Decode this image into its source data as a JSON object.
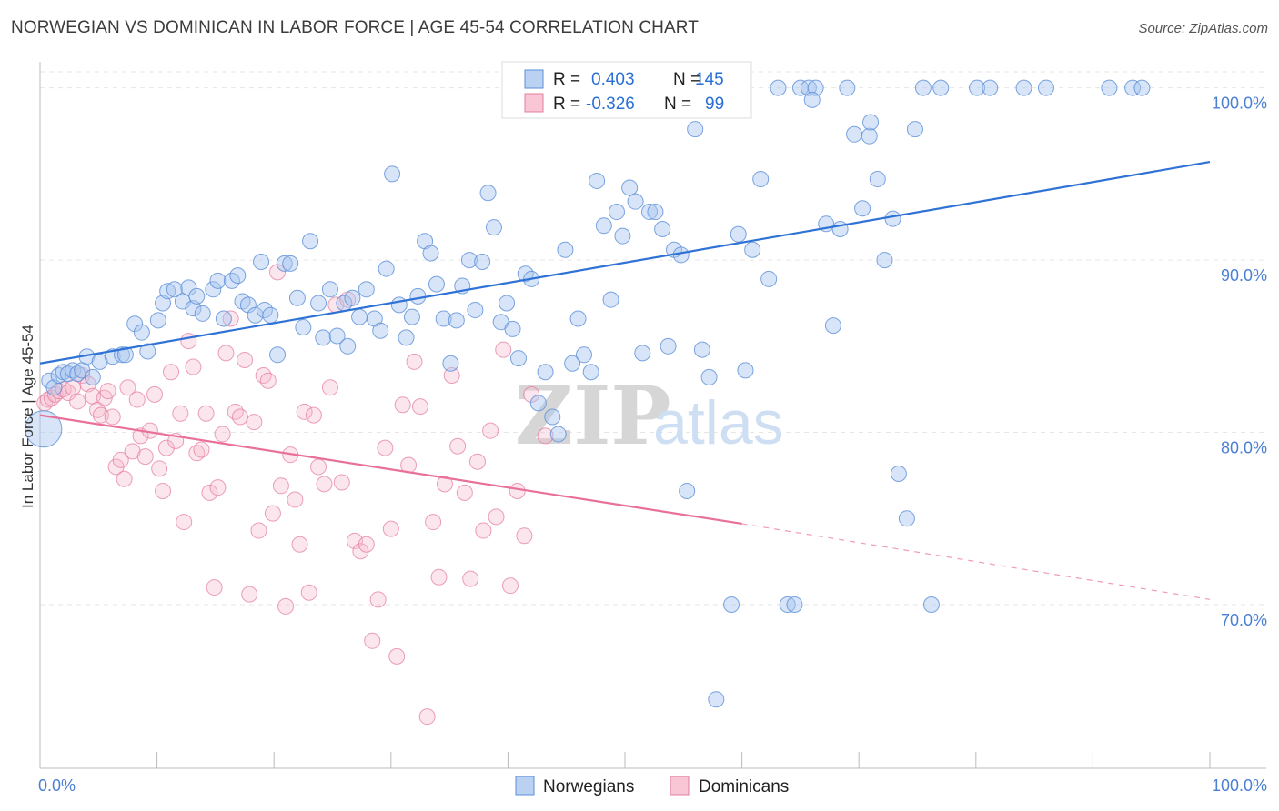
{
  "title": "NORWEGIAN VS DOMINICAN IN LABOR FORCE | AGE 45-54 CORRELATION CHART",
  "source": "Source: ZipAtlas.com",
  "watermark": {
    "zip": "ZIP",
    "atlas": "atlas"
  },
  "colors": {
    "norwegians_fill": "#a9c6ef",
    "norwegians_stroke": "#5b8fd8",
    "norwegians_line": "#2f72d6",
    "dominicans_fill": "#f6b8cb",
    "dominicans_stroke": "#e47fa0",
    "dominicans_line": "#e8709a",
    "tick_text": "#4a7fd4",
    "grid": "#e6e6e6"
  },
  "legend_box": {
    "r_label": "R =",
    "n_label": "N =",
    "rows": [
      {
        "series": "Norwegians",
        "r": "0.403",
        "n": "145"
      },
      {
        "series": "Dominicans",
        "r": "-0.326",
        "n": "99"
      }
    ]
  },
  "bottom_legend": [
    "Norwegians",
    "Dominicans"
  ],
  "chart_data": {
    "type": "scatter",
    "title": "NORWEGIAN VS DOMINICAN IN LABOR FORCE | AGE 45-54 CORRELATION CHART",
    "xlabel": "",
    "ylabel": "In Labor Force | Age 45-54",
    "xlim": [
      0,
      100
    ],
    "ylim": [
      60.5,
      101.3
    ],
    "x_tick_labels": [
      "0.0%",
      "100.0%"
    ],
    "y_ticks": [
      70,
      80,
      90,
      100
    ],
    "y_tick_labels": [
      "70.0%",
      "80.0%",
      "90.0%",
      "100.0%"
    ],
    "grid": true,
    "legend_position": "top-center",
    "series": [
      {
        "name": "Norwegians",
        "r": 0.403,
        "n": 145,
        "trend": {
          "x0": 0,
          "y0": 84.0,
          "x1": 100,
          "y1": 95.7
        },
        "points": [
          [
            0.3,
            80.2
          ],
          [
            0.8,
            83.0
          ],
          [
            1.2,
            82.6
          ],
          [
            1.6,
            83.3
          ],
          [
            2.0,
            83.5
          ],
          [
            2.4,
            83.4
          ],
          [
            2.8,
            83.6
          ],
          [
            3.2,
            83.4
          ],
          [
            3.6,
            83.6
          ],
          [
            4.0,
            84.4
          ],
          [
            4.5,
            83.2
          ],
          [
            5.1,
            84.1
          ],
          [
            6.2,
            84.4
          ],
          [
            7.0,
            84.5
          ],
          [
            7.3,
            84.5
          ],
          [
            8.1,
            86.3
          ],
          [
            8.7,
            85.8
          ],
          [
            9.2,
            84.7
          ],
          [
            10.1,
            86.5
          ],
          [
            10.5,
            87.5
          ],
          [
            10.9,
            88.2
          ],
          [
            11.5,
            88.3
          ],
          [
            12.2,
            87.6
          ],
          [
            12.7,
            88.4
          ],
          [
            13.1,
            87.2
          ],
          [
            13.4,
            87.9
          ],
          [
            13.9,
            86.9
          ],
          [
            14.8,
            88.3
          ],
          [
            15.2,
            88.8
          ],
          [
            15.7,
            86.6
          ],
          [
            16.4,
            88.8
          ],
          [
            16.9,
            89.1
          ],
          [
            17.3,
            87.6
          ],
          [
            17.8,
            87.4
          ],
          [
            18.4,
            86.8
          ],
          [
            18.9,
            89.9
          ],
          [
            19.2,
            87.1
          ],
          [
            19.7,
            86.8
          ],
          [
            20.3,
            84.5
          ],
          [
            20.9,
            89.8
          ],
          [
            21.4,
            89.8
          ],
          [
            22.0,
            87.8
          ],
          [
            22.5,
            86.1
          ],
          [
            23.1,
            91.1
          ],
          [
            23.8,
            87.5
          ],
          [
            24.2,
            85.5
          ],
          [
            24.8,
            88.3
          ],
          [
            25.4,
            85.6
          ],
          [
            26.0,
            87.5
          ],
          [
            26.3,
            85.0
          ],
          [
            26.7,
            87.8
          ],
          [
            27.3,
            86.7
          ],
          [
            27.9,
            88.3
          ],
          [
            28.6,
            86.6
          ],
          [
            29.1,
            85.9
          ],
          [
            29.6,
            89.5
          ],
          [
            30.1,
            95.0
          ],
          [
            30.7,
            87.4
          ],
          [
            31.3,
            85.5
          ],
          [
            31.8,
            86.7
          ],
          [
            32.3,
            87.9
          ],
          [
            32.9,
            91.1
          ],
          [
            33.4,
            90.4
          ],
          [
            33.9,
            88.6
          ],
          [
            34.5,
            86.6
          ],
          [
            35.1,
            84.0
          ],
          [
            35.6,
            86.5
          ],
          [
            36.1,
            88.5
          ],
          [
            36.7,
            90.0
          ],
          [
            37.2,
            87.1
          ],
          [
            37.8,
            89.9
          ],
          [
            38.3,
            93.9
          ],
          [
            38.8,
            91.9
          ],
          [
            39.4,
            86.4
          ],
          [
            39.9,
            87.5
          ],
          [
            40.4,
            86.0
          ],
          [
            40.9,
            84.3
          ],
          [
            41.5,
            89.2
          ],
          [
            42.0,
            88.9
          ],
          [
            42.6,
            81.7
          ],
          [
            43.2,
            83.5
          ],
          [
            43.8,
            80.9
          ],
          [
            44.3,
            79.9
          ],
          [
            44.9,
            90.6
          ],
          [
            45.5,
            84.0
          ],
          [
            46.0,
            86.6
          ],
          [
            46.5,
            84.5
          ],
          [
            47.1,
            83.5
          ],
          [
            47.6,
            94.6
          ],
          [
            48.2,
            92.0
          ],
          [
            48.8,
            87.7
          ],
          [
            49.3,
            92.8
          ],
          [
            49.8,
            91.4
          ],
          [
            50.4,
            94.2
          ],
          [
            50.9,
            93.4
          ],
          [
            51.5,
            84.6
          ],
          [
            52.1,
            92.8
          ],
          [
            52.6,
            92.8
          ],
          [
            53.2,
            91.8
          ],
          [
            53.7,
            85.0
          ],
          [
            54.2,
            90.6
          ],
          [
            54.8,
            90.3
          ],
          [
            55.3,
            76.6
          ],
          [
            56.0,
            97.6
          ],
          [
            56.6,
            84.8
          ],
          [
            57.2,
            83.2
          ],
          [
            57.8,
            64.5
          ],
          [
            58.5,
            99.2
          ],
          [
            59.1,
            70.0
          ],
          [
            59.7,
            91.5
          ],
          [
            60.3,
            83.6
          ],
          [
            60.9,
            90.6
          ],
          [
            61.6,
            94.7
          ],
          [
            62.3,
            88.9
          ],
          [
            63.1,
            100.0
          ],
          [
            63.9,
            70.0
          ],
          [
            64.5,
            70.0
          ],
          [
            65.0,
            100.0
          ],
          [
            65.7,
            100.0
          ],
          [
            66.3,
            100.0
          ],
          [
            67.2,
            92.1
          ],
          [
            67.8,
            86.2
          ],
          [
            68.4,
            91.8
          ],
          [
            69.0,
            100.0
          ],
          [
            69.6,
            97.3
          ],
          [
            70.3,
            93.0
          ],
          [
            70.9,
            97.2
          ],
          [
            71.6,
            94.7
          ],
          [
            72.2,
            90.0
          ],
          [
            72.9,
            92.4
          ],
          [
            73.4,
            77.6
          ],
          [
            74.1,
            75.0
          ],
          [
            74.8,
            97.6
          ],
          [
            75.5,
            100.0
          ],
          [
            76.2,
            70.0
          ],
          [
            77.0,
            100.0
          ],
          [
            80.1,
            100.0
          ],
          [
            81.2,
            100.0
          ],
          [
            84.1,
            100.0
          ],
          [
            86.0,
            100.0
          ],
          [
            91.4,
            100.0
          ],
          [
            93.4,
            100.0
          ],
          [
            94.2,
            100.0
          ],
          [
            66.0,
            99.3
          ],
          [
            71.0,
            98.0
          ]
        ]
      },
      {
        "name": "Dominicans",
        "r": -0.326,
        "n": 99,
        "trend_solid": {
          "x0": 0,
          "y0": 81.0,
          "x1": 60,
          "y1": 74.7
        },
        "trend_dashed": {
          "x0": 60,
          "y0": 74.7,
          "x1": 100,
          "y1": 70.3
        },
        "points": [
          [
            0.4,
            81.7
          ],
          [
            0.7,
            81.9
          ],
          [
            1.0,
            82.0
          ],
          [
            1.3,
            82.2
          ],
          [
            1.6,
            82.4
          ],
          [
            2.0,
            82.5
          ],
          [
            2.4,
            82.3
          ],
          [
            2.8,
            82.6
          ],
          [
            3.2,
            81.8
          ],
          [
            3.6,
            83.3
          ],
          [
            4.1,
            82.8
          ],
          [
            4.5,
            82.1
          ],
          [
            4.9,
            81.3
          ],
          [
            5.2,
            81.0
          ],
          [
            5.5,
            82.0
          ],
          [
            5.8,
            82.4
          ],
          [
            6.2,
            80.9
          ],
          [
            6.5,
            78.0
          ],
          [
            6.9,
            78.4
          ],
          [
            7.2,
            77.3
          ],
          [
            7.5,
            82.6
          ],
          [
            7.9,
            78.9
          ],
          [
            8.3,
            81.9
          ],
          [
            8.6,
            79.8
          ],
          [
            9.0,
            78.6
          ],
          [
            9.4,
            80.1
          ],
          [
            9.8,
            82.2
          ],
          [
            10.2,
            77.9
          ],
          [
            10.5,
            76.6
          ],
          [
            10.8,
            79.1
          ],
          [
            11.2,
            83.5
          ],
          [
            11.6,
            79.5
          ],
          [
            12.0,
            81.1
          ],
          [
            12.3,
            74.8
          ],
          [
            12.7,
            85.3
          ],
          [
            13.1,
            83.8
          ],
          [
            13.4,
            78.8
          ],
          [
            13.8,
            79.0
          ],
          [
            14.2,
            81.1
          ],
          [
            14.5,
            76.5
          ],
          [
            14.9,
            71.0
          ],
          [
            15.2,
            76.8
          ],
          [
            15.6,
            79.9
          ],
          [
            15.9,
            84.6
          ],
          [
            16.3,
            86.6
          ],
          [
            16.7,
            81.2
          ],
          [
            17.1,
            80.9
          ],
          [
            17.5,
            84.2
          ],
          [
            17.9,
            70.6
          ],
          [
            18.3,
            80.6
          ],
          [
            18.7,
            74.3
          ],
          [
            19.1,
            83.3
          ],
          [
            19.5,
            83.0
          ],
          [
            19.9,
            75.3
          ],
          [
            20.3,
            89.3
          ],
          [
            20.6,
            76.9
          ],
          [
            21.0,
            69.9
          ],
          [
            21.4,
            78.7
          ],
          [
            21.8,
            76.1
          ],
          [
            22.2,
            73.5
          ],
          [
            22.6,
            81.2
          ],
          [
            23.0,
            70.7
          ],
          [
            23.4,
            81.0
          ],
          [
            23.8,
            78.0
          ],
          [
            24.3,
            77.0
          ],
          [
            24.8,
            82.6
          ],
          [
            25.3,
            87.4
          ],
          [
            25.8,
            77.1
          ],
          [
            26.3,
            87.7
          ],
          [
            26.9,
            73.7
          ],
          [
            27.4,
            73.1
          ],
          [
            27.9,
            73.5
          ],
          [
            28.4,
            67.9
          ],
          [
            28.9,
            70.3
          ],
          [
            29.5,
            79.1
          ],
          [
            30.0,
            74.4
          ],
          [
            30.5,
            67.0
          ],
          [
            31.0,
            81.6
          ],
          [
            31.5,
            78.1
          ],
          [
            32.0,
            84.1
          ],
          [
            32.5,
            81.5
          ],
          [
            33.1,
            63.5
          ],
          [
            33.6,
            74.8
          ],
          [
            34.1,
            71.6
          ],
          [
            34.6,
            77.0
          ],
          [
            35.2,
            83.3
          ],
          [
            35.7,
            79.2
          ],
          [
            36.3,
            76.5
          ],
          [
            36.8,
            71.5
          ],
          [
            37.4,
            78.3
          ],
          [
            37.9,
            74.3
          ],
          [
            38.5,
            80.1
          ],
          [
            39.0,
            75.1
          ],
          [
            39.6,
            84.8
          ],
          [
            40.2,
            71.1
          ],
          [
            40.8,
            76.6
          ],
          [
            41.4,
            74.0
          ],
          [
            42.0,
            82.2
          ],
          [
            43.2,
            79.8
          ]
        ]
      }
    ]
  }
}
